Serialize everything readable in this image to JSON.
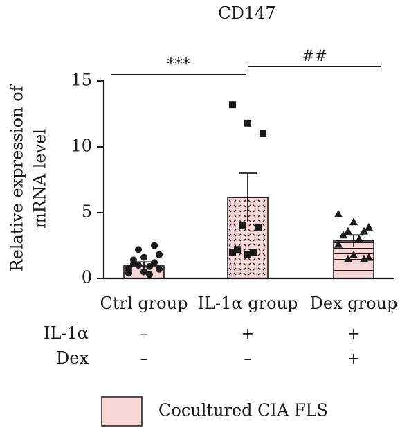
{
  "chart_data": {
    "type": "bar",
    "title": "CD147",
    "ylabel_line1": "Relative expression of",
    "ylabel_line2": "mRNA level",
    "ylim": [
      0,
      15
    ],
    "yticks": [
      "0",
      "5",
      "10",
      "15"
    ],
    "categories": [
      "Ctrl group",
      "IL-1α group",
      "Dex group"
    ],
    "series": [
      {
        "name": "Cocultured CIA FLS",
        "values": [
          0.95,
          6.15,
          2.85
        ],
        "error": [
          0.3,
          1.85,
          0.45
        ],
        "points": [
          [
            0.4,
            0.5,
            0.7,
            1.0,
            1.2,
            1.4,
            0.9,
            0.6,
            1.6,
            1.8,
            2.2,
            2.5,
            1.1,
            0.3,
            0.8
          ],
          [
            13.2,
            11.8,
            11.0,
            4.0,
            3.9,
            2.2,
            2.0,
            2.0,
            1.8
          ],
          [
            4.9,
            4.3,
            3.9,
            3.6,
            3.6,
            3.3,
            3.0,
            2.6,
            1.8,
            1.6,
            1.5,
            1.5
          ]
        ]
      }
    ],
    "significance": [
      {
        "from": 0,
        "to": 1,
        "label": "***"
      },
      {
        "from": 1,
        "to": 2,
        "label": "##"
      }
    ],
    "treatment_rows": [
      {
        "label": "IL-1α",
        "values": [
          "–",
          "+",
          "+"
        ]
      },
      {
        "label": "Dex",
        "values": [
          "–",
          "–",
          "+"
        ]
      }
    ],
    "legend": {
      "label": "Cocultured CIA FLS",
      "color": "#f9d6d6"
    },
    "colors": {
      "bar_fill": "#f9d6d6",
      "stroke": "#1a1a1a"
    }
  }
}
